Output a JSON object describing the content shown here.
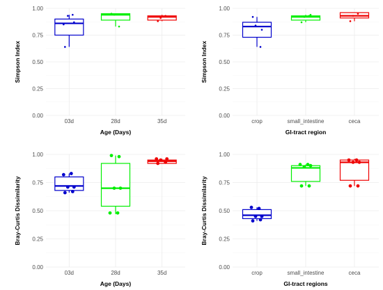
{
  "chart_data": [
    {
      "type": "box",
      "id": "simpson-age",
      "xlabel": "Age (Days)",
      "ylabel": "Simpson Index",
      "ylim": [
        0,
        1
      ],
      "yticks": [
        "0.00",
        "0.25",
        "0.50",
        "0.75",
        "1.00"
      ],
      "categories": [
        "03d",
        "28d",
        "35d"
      ],
      "colors": [
        "#0000cc",
        "#00ee00",
        "#ee0000"
      ],
      "boxes": [
        {
          "q1": 0.75,
          "median": 0.86,
          "q3": 0.9,
          "low": 0.64,
          "high": 0.94,
          "points": [
            0.64,
            0.94,
            0.93,
            0.87,
            0.85
          ]
        },
        {
          "q1": 0.89,
          "median": 0.94,
          "q3": 0.95,
          "low": 0.83,
          "high": 0.95,
          "points": [
            0.95,
            0.83,
            0.94
          ]
        },
        {
          "q1": 0.89,
          "median": 0.92,
          "q3": 0.93,
          "low": 0.88,
          "high": 0.94,
          "points": [
            0.88,
            0.93,
            0.91
          ]
        }
      ]
    },
    {
      "type": "box",
      "id": "simpson-region",
      "xlabel": "GI-tract region",
      "ylabel": "Simpson Index",
      "ylim": [
        0,
        1
      ],
      "yticks": [
        "0.00",
        "0.25",
        "0.50",
        "0.75",
        "1.00"
      ],
      "categories": [
        "crop",
        "small_intestine",
        "ceca"
      ],
      "colors": [
        "#0000cc",
        "#00ee00",
        "#ee0000"
      ],
      "boxes": [
        {
          "q1": 0.73,
          "median": 0.83,
          "q3": 0.87,
          "low": 0.64,
          "high": 0.92,
          "points": [
            0.92,
            0.64,
            0.84,
            0.8
          ]
        },
        {
          "q1": 0.89,
          "median": 0.92,
          "q3": 0.93,
          "low": 0.87,
          "high": 0.94,
          "points": [
            0.87,
            0.93,
            0.92,
            0.94
          ]
        },
        {
          "q1": 0.91,
          "median": 0.93,
          "q3": 0.96,
          "low": 0.88,
          "high": 0.96,
          "points": [
            0.88,
            0.95,
            0.93
          ]
        }
      ]
    },
    {
      "type": "box",
      "id": "braycurtis-age",
      "xlabel": "Age (Days)",
      "ylabel": "Bray-Curtis Dissimilarity",
      "ylim": [
        0,
        1
      ],
      "yticks": [
        "0.00",
        "0.25",
        "0.50",
        "0.75",
        "1.00"
      ],
      "categories": [
        "03d",
        "28d",
        "35d"
      ],
      "colors": [
        "#0000cc",
        "#00ee00",
        "#ee0000"
      ],
      "boxes": [
        {
          "q1": 0.68,
          "median": 0.72,
          "q3": 0.8,
          "low": 0.66,
          "high": 0.83,
          "points": [
            0.66,
            0.67,
            0.71,
            0.71,
            0.82,
            0.83
          ]
        },
        {
          "q1": 0.54,
          "median": 0.7,
          "q3": 0.92,
          "low": 0.47,
          "high": 0.99,
          "points": [
            0.99,
            0.98,
            0.7,
            0.7,
            0.48,
            0.48
          ]
        },
        {
          "q1": 0.92,
          "median": 0.94,
          "q3": 0.95,
          "low": 0.92,
          "high": 0.96,
          "points": [
            0.92,
            0.93,
            0.95,
            0.96,
            0.96
          ]
        }
      ]
    },
    {
      "type": "box",
      "id": "braycurtis-region",
      "xlabel": "GI-tract regions",
      "ylabel": "Bray-Curtis Dissimilarity",
      "ylim": [
        0,
        1
      ],
      "yticks": [
        "0.00",
        "0.25",
        "0.50",
        "0.75",
        "1.00"
      ],
      "categories": [
        "crop",
        "small_intestine",
        "ceca"
      ],
      "colors": [
        "#0000cc",
        "#00ee00",
        "#ee0000"
      ],
      "boxes": [
        {
          "q1": 0.43,
          "median": 0.46,
          "q3": 0.51,
          "low": 0.41,
          "high": 0.53,
          "points": [
            0.41,
            0.42,
            0.45,
            0.45,
            0.53,
            0.52
          ]
        },
        {
          "q1": 0.76,
          "median": 0.88,
          "q3": 0.9,
          "low": 0.72,
          "high": 0.91,
          "points": [
            0.72,
            0.72,
            0.89,
            0.9,
            0.91,
            0.91
          ]
        },
        {
          "q1": 0.77,
          "median": 0.93,
          "q3": 0.95,
          "low": 0.72,
          "high": 0.96,
          "points": [
            0.72,
            0.72,
            0.93,
            0.93,
            0.95,
            0.95
          ]
        }
      ]
    }
  ]
}
